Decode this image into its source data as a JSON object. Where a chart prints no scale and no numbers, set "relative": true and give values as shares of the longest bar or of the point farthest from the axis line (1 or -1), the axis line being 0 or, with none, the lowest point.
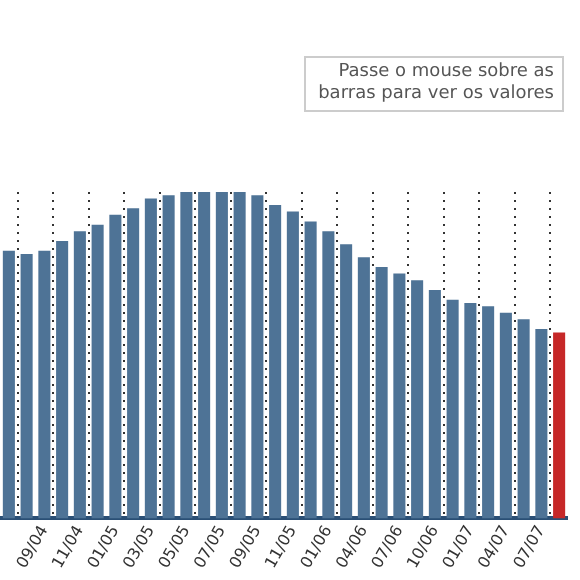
{
  "chart_data": {
    "type": "bar",
    "relative": true,
    "categories": [
      null,
      null,
      "09/04",
      null,
      "11/04",
      null,
      "01/05",
      null,
      "03/05",
      null,
      "05/05",
      null,
      "07/05",
      null,
      "09/05",
      null,
      "11/05",
      null,
      "01/06",
      null,
      "04/06",
      null,
      "07/06",
      null,
      "10/06",
      null,
      "01/07",
      null,
      "04/07",
      null,
      "07/07",
      null
    ],
    "values": [
      0.82,
      0.81,
      0.82,
      0.85,
      0.88,
      0.9,
      0.93,
      0.95,
      0.98,
      0.99,
      1,
      1,
      1,
      1,
      0.99,
      0.96,
      0.94,
      0.91,
      0.88,
      0.84,
      0.8,
      0.77,
      0.75,
      0.73,
      0.7,
      0.67,
      0.66,
      0.65,
      0.63,
      0.61,
      0.58,
      0.57
    ],
    "colors": [
      "#4e7396",
      "#4e7396",
      "#4e7396",
      "#4e7396",
      "#4e7396",
      "#4e7396",
      "#4e7396",
      "#4e7396",
      "#4e7396",
      "#4e7396",
      "#4e7396",
      "#4e7396",
      "#4e7396",
      "#4e7396",
      "#4e7396",
      "#4e7396",
      "#4e7396",
      "#4e7396",
      "#4e7396",
      "#4e7396",
      "#4e7396",
      "#4e7396",
      "#4e7396",
      "#4e7396",
      "#4e7396",
      "#4e7396",
      "#4e7396",
      "#4e7396",
      "#4e7396",
      "#4e7396",
      "#4e7396",
      "#c62828"
    ],
    "annotations": [
      "Passe o mouse sobre as barras para ver os valores"
    ],
    "grid": "x",
    "legend": false
  }
}
